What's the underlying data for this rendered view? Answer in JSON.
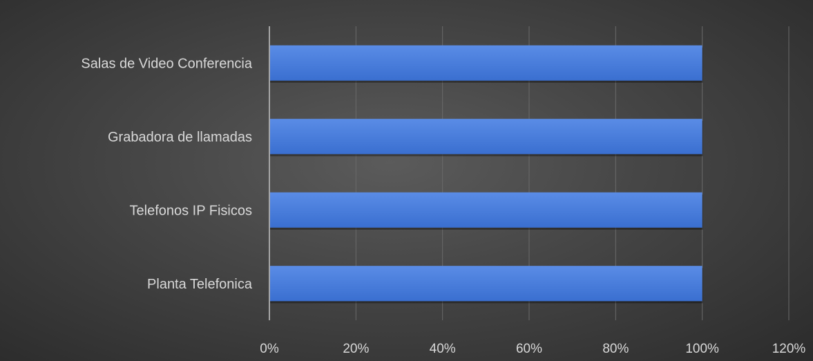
{
  "chart_data": {
    "type": "bar",
    "orientation": "horizontal",
    "categories": [
      "Salas de Video Conferencia",
      "Grabadora de llamadas",
      "Telefonos IP Fisicos",
      "Planta Telefonica"
    ],
    "values": [
      1.0,
      1.0,
      1.0,
      1.0
    ],
    "xlim": [
      0,
      1.2
    ],
    "xticks": [
      "0%",
      "20%",
      "40%",
      "60%",
      "80%",
      "100%",
      "120%"
    ],
    "grid": true,
    "legend": "none",
    "colors": {
      "bar": "#3a6fd0",
      "bar_highlight": "#5a8ce6",
      "gridline": "#6a6a6a",
      "axis": "#a6a6a6",
      "text": "#d9d9d9"
    }
  }
}
